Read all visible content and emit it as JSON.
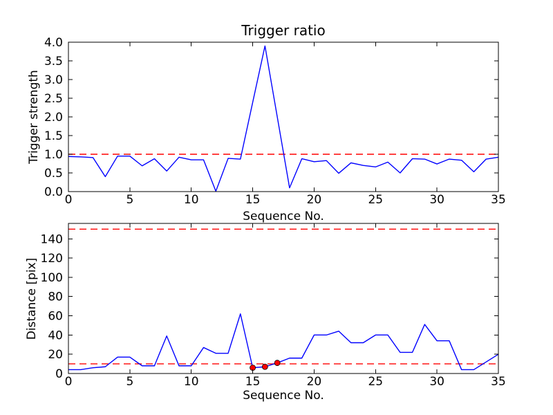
{
  "colors": {
    "series_line": "#0000ff",
    "threshold_line": "#ff0000",
    "marker_fill": "#ff0000",
    "marker_edge": "#000000",
    "axis": "#000000",
    "background": "#ffffff",
    "text": "#000000"
  },
  "chart_data": [
    {
      "id": "trigger-strength",
      "type": "line",
      "title": "Trigger ratio",
      "xlabel": "Sequence No.",
      "ylabel": "Trigger strength",
      "xlim": [
        0,
        35
      ],
      "ylim": [
        0,
        4.0
      ],
      "xticks": [
        "0",
        "5",
        "10",
        "15",
        "20",
        "25",
        "30",
        "35"
      ],
      "yticks": [
        "0.0",
        "0.5",
        "1.0",
        "1.5",
        "2.0",
        "2.5",
        "3.0",
        "3.5",
        "4.0"
      ],
      "grid": false,
      "legend": null,
      "threshold_lines": [
        1.0
      ],
      "x": [
        0,
        1,
        2,
        3,
        4,
        5,
        6,
        7,
        8,
        9,
        10,
        11,
        12,
        13,
        14,
        15,
        16,
        17,
        18,
        19,
        20,
        21,
        22,
        23,
        24,
        25,
        26,
        27,
        28,
        29,
        30,
        31,
        32,
        33,
        34,
        35
      ],
      "y": [
        0.94,
        0.93,
        0.91,
        0.4,
        0.95,
        0.95,
        0.69,
        0.88,
        0.55,
        0.92,
        0.85,
        0.85,
        0.01,
        0.89,
        0.87,
        2.39,
        3.9,
        2.0,
        0.1,
        0.88,
        0.8,
        0.83,
        0.49,
        0.77,
        0.7,
        0.66,
        0.79,
        0.5,
        0.88,
        0.87,
        0.74,
        0.87,
        0.84,
        0.53,
        0.87,
        0.92
      ]
    },
    {
      "id": "distance",
      "type": "line",
      "title": "",
      "xlabel": "Sequence No.",
      "ylabel": "Distance [pix]",
      "xlim": [
        0,
        35
      ],
      "ylim": [
        0,
        156
      ],
      "xticks": [
        "0",
        "5",
        "10",
        "15",
        "20",
        "25",
        "30",
        "35"
      ],
      "yticks": [
        "0",
        "20",
        "40",
        "60",
        "80",
        "100",
        "120",
        "140"
      ],
      "grid": false,
      "legend": null,
      "threshold_lines": [
        10,
        150
      ],
      "x": [
        0,
        1,
        2,
        3,
        4,
        5,
        6,
        7,
        8,
        9,
        10,
        11,
        12,
        13,
        14,
        15,
        16,
        17,
        18,
        19,
        20,
        21,
        22,
        23,
        24,
        25,
        26,
        27,
        28,
        29,
        30,
        31,
        32,
        33,
        34,
        35
      ],
      "y": [
        4,
        4,
        6,
        7,
        17,
        17,
        8,
        8,
        39,
        8,
        8,
        27,
        21,
        21,
        62,
        6,
        7,
        11,
        16,
        16,
        40,
        40,
        44,
        32,
        32,
        40,
        40,
        22,
        22,
        51,
        34,
        34,
        4,
        4,
        12,
        20
      ],
      "markers": {
        "x": [
          15,
          16,
          17
        ],
        "y": [
          6,
          7,
          11
        ]
      }
    }
  ]
}
